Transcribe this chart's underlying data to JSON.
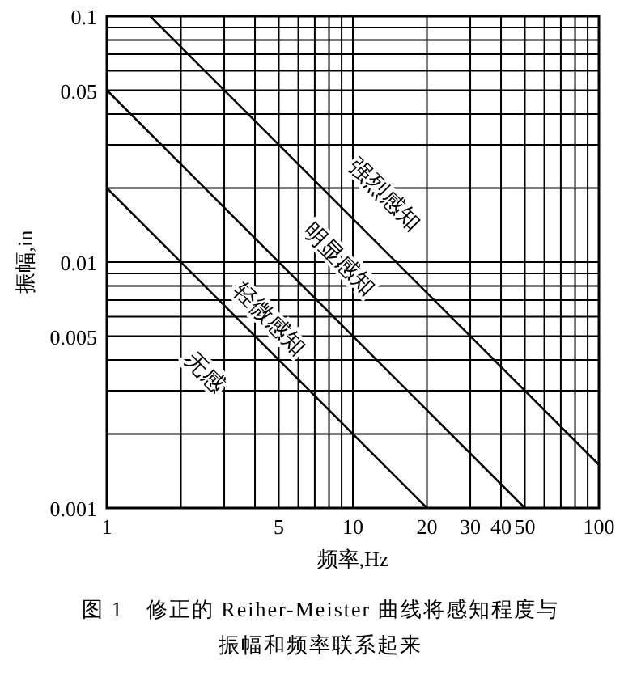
{
  "chart_data": {
    "type": "line",
    "title": "图 1　修正的 Reiher-Meister 曲线将感知程度与振幅和频率联系起来",
    "xlabel": "频率,Hz",
    "ylabel": "振幅,in",
    "log": "xy",
    "grid": true,
    "xlim": [
      1,
      100
    ],
    "ylim": [
      0.001,
      0.1
    ],
    "xticks": [
      1,
      5,
      10,
      20,
      30,
      40,
      50,
      100
    ],
    "yticks": [
      0.001,
      0.005,
      0.01,
      0.05,
      0.1
    ],
    "series": [
      {
        "color": "#000000",
        "x": [
          1.5,
          100
        ],
        "values": [
          0.1,
          0.0015
        ]
      },
      {
        "color": "#000000",
        "x": [
          1,
          50
        ],
        "values": [
          0.05,
          0.001
        ]
      },
      {
        "color": "#000000",
        "x": [
          1,
          20
        ],
        "values": [
          0.02,
          0.001
        ]
      }
    ],
    "annotations": [
      "强烈感知",
      "明显感知",
      "轻微感知",
      "无感"
    ]
  }
}
